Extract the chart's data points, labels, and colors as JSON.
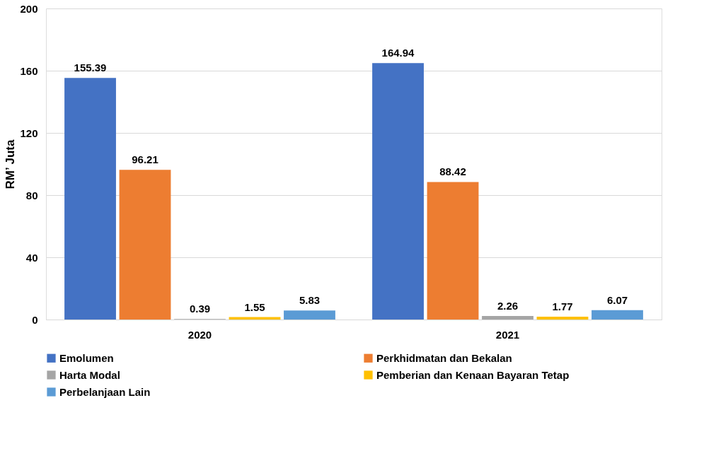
{
  "chart_data": {
    "type": "bar",
    "categories": [
      "2020",
      "2021"
    ],
    "ylabel": "RM’ Juta",
    "series": [
      {
        "name": "Emolumen",
        "color": "#4472c4",
        "values": [
          155.39,
          164.94
        ]
      },
      {
        "name": "Perkhidmatan dan Bekalan",
        "color": "#ed7d31",
        "values": [
          96.21,
          88.42
        ]
      },
      {
        "name": "Harta Modal",
        "color": "#a5a5a5",
        "values": [
          0.39,
          2.26
        ]
      },
      {
        "name": "Pemberian dan Kenaan Bayaran Tetap",
        "color": "#ffc000",
        "values": [
          1.55,
          1.77
        ]
      },
      {
        "name": "Perbelanjaan Lain",
        "color": "#5b9bd5",
        "values": [
          5.83,
          6.07
        ]
      }
    ],
    "ylim": [
      0,
      200
    ],
    "yticks": [
      0,
      40,
      80,
      120,
      160,
      200
    ],
    "grid": "y",
    "legend": "bottom",
    "data_labels": true
  }
}
